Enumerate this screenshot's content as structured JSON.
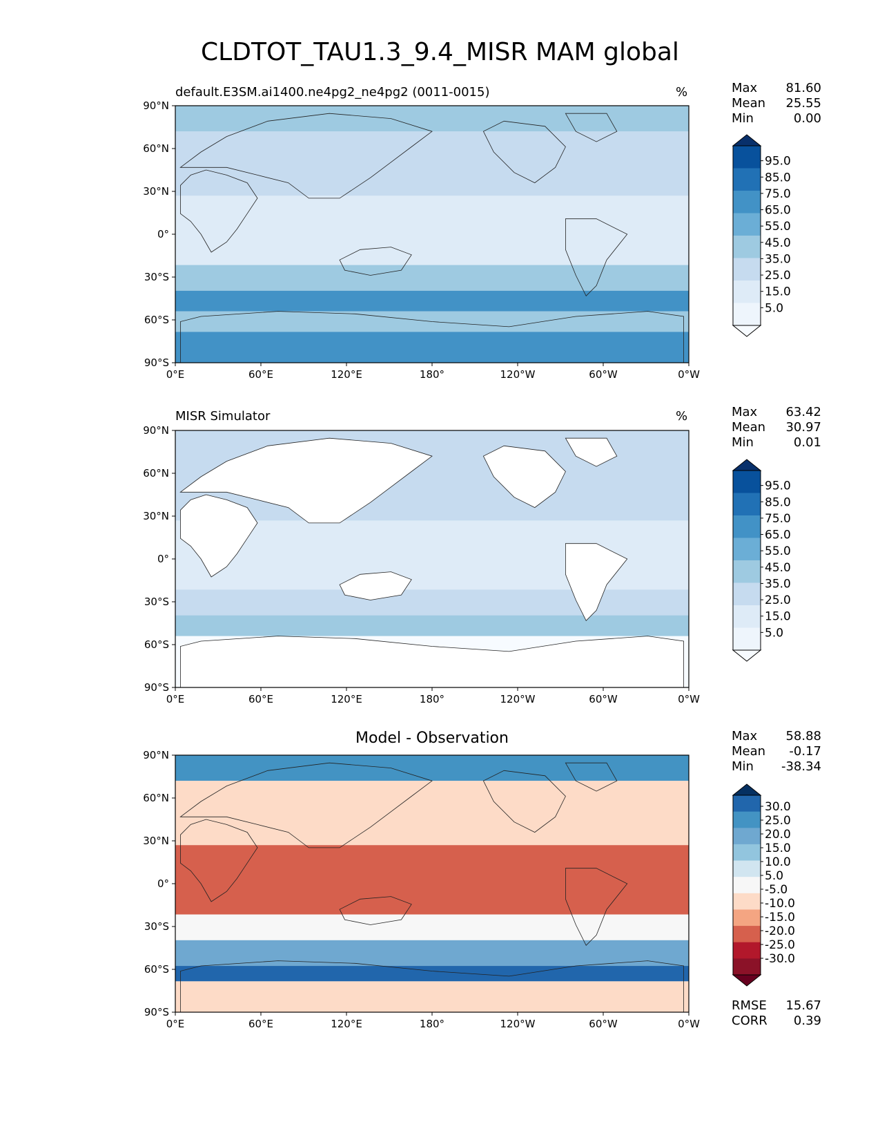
{
  "figure": {
    "title": "CLDTOT_TAU1.3_9.4_MISR MAM global"
  },
  "chart_data": [
    {
      "type": "heatmap",
      "panel": "test",
      "title": "default.E3SM.ai1400.ne4pg2_ne4pg2 (0011-0015)",
      "units": "%",
      "stats": {
        "max": "81.60",
        "mean": "25.55",
        "min": "0.00"
      },
      "xticks": [
        "0°E",
        "60°E",
        "120°E",
        "180°",
        "120°W",
        "60°W",
        "0°W"
      ],
      "yticks": [
        "90°N",
        "60°N",
        "30°N",
        "0°",
        "30°S",
        "60°S",
        "90°S"
      ],
      "colorbar": {
        "levels": [
          "95.0",
          "85.0",
          "75.0",
          "65.0",
          "55.0",
          "45.0",
          "35.0",
          "25.0",
          "15.0",
          "5.0"
        ],
        "colors": [
          "#08306b",
          "#08519c",
          "#2171b5",
          "#4292c6",
          "#6baed6",
          "#9ecae1",
          "#c6dbef",
          "#deebf7",
          "#eef5fc",
          "#f7fbff"
        ],
        "extend": "both"
      }
    },
    {
      "type": "heatmap",
      "panel": "reference",
      "title": "MISR Simulator",
      "units": "%",
      "stats": {
        "max": "63.42",
        "mean": "30.97",
        "min": "0.01"
      },
      "xticks": [
        "0°E",
        "60°E",
        "120°E",
        "180°",
        "120°W",
        "60°W",
        "0°W"
      ],
      "yticks": [
        "90°N",
        "60°N",
        "30°N",
        "0°",
        "30°S",
        "60°S",
        "90°S"
      ],
      "colorbar": {
        "levels": [
          "95.0",
          "85.0",
          "75.0",
          "65.0",
          "55.0",
          "45.0",
          "35.0",
          "25.0",
          "15.0",
          "5.0"
        ],
        "colors": [
          "#08306b",
          "#08519c",
          "#2171b5",
          "#4292c6",
          "#6baed6",
          "#9ecae1",
          "#c6dbef",
          "#deebf7",
          "#eef5fc",
          "#f7fbff"
        ],
        "extend": "both"
      }
    },
    {
      "type": "heatmap",
      "panel": "difference",
      "title": "Model - Observation",
      "units": "",
      "stats": {
        "max": "58.88",
        "mean": "-0.17",
        "min": "-38.34"
      },
      "metrics": {
        "rmse": "15.67",
        "corr": "0.39"
      },
      "xticks": [
        "0°E",
        "60°E",
        "120°E",
        "180°",
        "120°W",
        "60°W",
        "0°W"
      ],
      "yticks": [
        "90°N",
        "60°N",
        "30°N",
        "0°",
        "30°S",
        "60°S",
        "90°S"
      ],
      "colorbar": {
        "levels": [
          "30.0",
          "25.0",
          "20.0",
          "15.0",
          "10.0",
          "5.0",
          "-5.0",
          "-10.0",
          "-15.0",
          "-20.0",
          "-25.0",
          "-30.0"
        ],
        "colors": [
          "#053061",
          "#2166ac",
          "#4393c3",
          "#6fa8d0",
          "#92c5de",
          "#d1e5f0",
          "#f7f7f7",
          "#fddbc7",
          "#f4a582",
          "#d6604d",
          "#b2182b",
          "#8b1228",
          "#67001f"
        ],
        "extend": "both"
      }
    }
  ]
}
